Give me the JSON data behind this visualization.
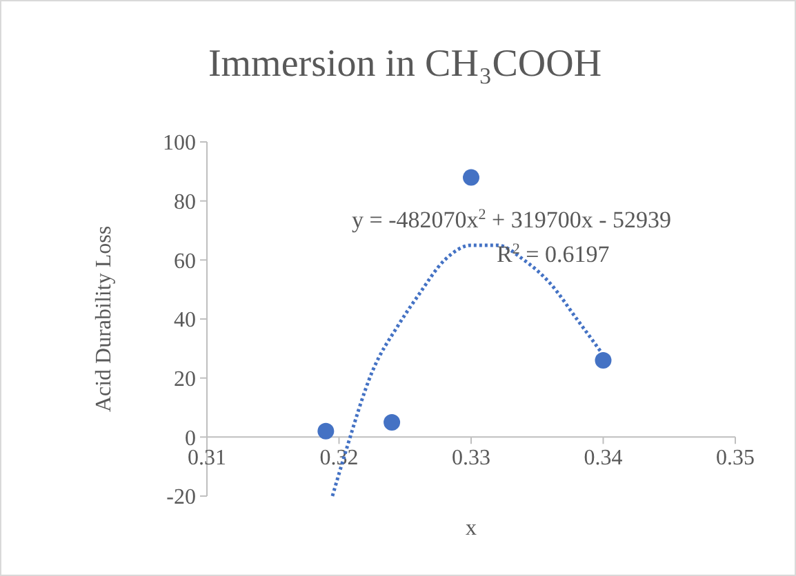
{
  "chart_data": {
    "type": "scatter",
    "title": "Immersion in CH₃COOH",
    "xlabel": "x",
    "ylabel": "Acid Durability Loss",
    "xlim": [
      0.31,
      0.35
    ],
    "xticks": [
      0.31,
      0.32,
      0.33,
      0.34,
      0.35
    ],
    "ylim": [
      -20,
      100
    ],
    "yticks": [
      -20,
      0,
      20,
      40,
      60,
      80,
      100
    ],
    "grid": false,
    "annotations": [
      "y = -482070x$^{2}$ + 319700x - 52939",
      "R$^{2}$ = 0.6197"
    ],
    "series": [
      {
        "color": "#4472c4",
        "marker": "circle",
        "x": [
          0.319,
          0.324,
          0.33,
          0.34
        ],
        "values": [
          2,
          5,
          88,
          26
        ]
      },
      {
        "type": "line",
        "color": "#4472c4",
        "marker": "none",
        "line_style": "dotted",
        "x": [
          0.3195,
          0.3205,
          0.3225,
          0.3245,
          0.326,
          0.328,
          0.33,
          0.332,
          0.334,
          0.336,
          0.338,
          0.3403
        ],
        "values": [
          -20,
          -5,
          22,
          38,
          48,
          60,
          65,
          65,
          60,
          52,
          40,
          26
        ]
      }
    ]
  }
}
